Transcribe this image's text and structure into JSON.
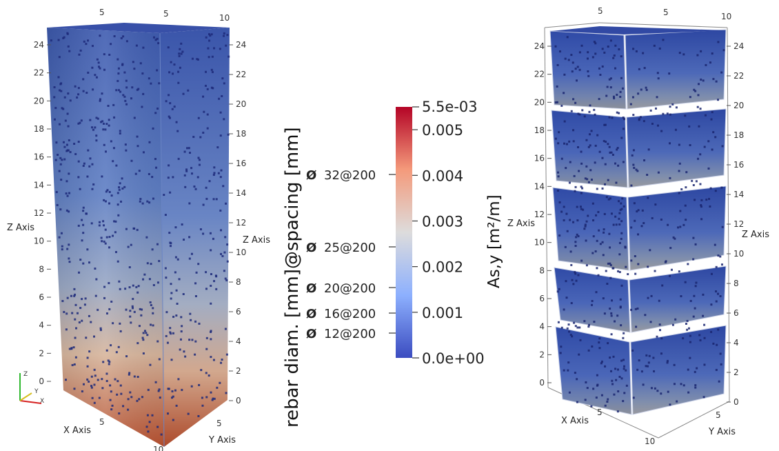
{
  "colorbar": {
    "title": "As,y [m²/m]",
    "max_label": "5.5e-03",
    "min_label": "0.0e+00",
    "ticks": [
      {
        "value": 0.005,
        "label": "0.005"
      },
      {
        "value": 0.004,
        "label": "0.004"
      },
      {
        "value": 0.003,
        "label": "0.003"
      },
      {
        "value": 0.002,
        "label": "0.002"
      },
      {
        "value": 0.001,
        "label": "0.001"
      }
    ],
    "range": [
      0,
      0.0055
    ],
    "colors": [
      "#3b4cc0",
      "#dddddd",
      "#b40426"
    ]
  },
  "rebar_axis": {
    "title": "rebar diam. [mm]@spacing [mm]",
    "symbol": "Ø",
    "items": [
      {
        "label": "32@200"
      },
      {
        "label": "25@200"
      },
      {
        "label": "20@200"
      },
      {
        "label": "16@200"
      },
      {
        "label": "12@200"
      }
    ]
  },
  "left_view": {
    "z_ticks": [
      "0",
      "2",
      "4",
      "6",
      "8",
      "10",
      "12",
      "14",
      "16",
      "18",
      "20",
      "22",
      "24"
    ],
    "top_ticks": [
      "5",
      "5",
      "10"
    ],
    "x_axis_label": "X Axis",
    "y_axis_label": "Y Axis",
    "z_axis_label": "Z Axis",
    "x_tick": "5",
    "x_end_tick": "10",
    "y_tick": "5"
  },
  "right_view": {
    "z_ticks": [
      "0",
      "2",
      "4",
      "6",
      "8",
      "10",
      "12",
      "14",
      "16",
      "18",
      "20",
      "22",
      "24"
    ],
    "top_ticks": [
      "5",
      "5",
      "10"
    ],
    "x_axis_label": "X Axis",
    "y_axis_label": "Y Axis",
    "z_axis_label": "Z Axis",
    "x_tick": "5",
    "x_end_tick": "10",
    "y_tick": "5"
  },
  "orientation_triad": {
    "x": "X",
    "y": "Y",
    "z": "Z"
  }
}
